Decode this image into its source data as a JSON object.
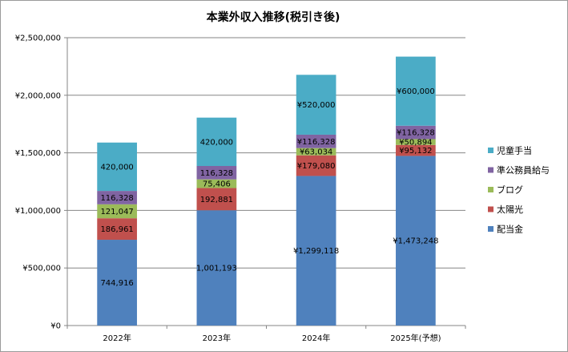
{
  "chart_data": {
    "type": "stacked-bar",
    "title": "本業外収入推移(税引き後)",
    "categories": [
      "2022年",
      "2023年",
      "2024年",
      "2025年(予想)"
    ],
    "ylim": [
      0,
      2500000
    ],
    "y_ticks": [
      0,
      500000,
      1000000,
      1500000,
      2000000,
      2500000
    ],
    "y_tick_labels": [
      "¥0",
      "¥500,000",
      "¥1,000,000",
      "¥1,500,000",
      "¥2,000,000",
      "¥2,500,000"
    ],
    "grid": true,
    "legend_position": "right",
    "series": [
      {
        "name": "配当金",
        "color": "#4f81bd",
        "values": [
          744916,
          1001193,
          1299118,
          1473248
        ],
        "labels": [
          "744,916",
          "1,001,193",
          "¥1,299,118",
          "¥1,473,248"
        ]
      },
      {
        "name": "太陽光",
        "color": "#c0504d",
        "values": [
          186961,
          192881,
          179080,
          95132
        ],
        "labels": [
          "186,961",
          "192,881",
          "¥179,080",
          "¥95,132"
        ]
      },
      {
        "name": "ブログ",
        "color": "#9bbb59",
        "values": [
          121047,
          75406,
          63034,
          50894
        ],
        "labels": [
          "121,047",
          "75,406",
          "¥63,034",
          "¥50,894"
        ]
      },
      {
        "name": "準公務員給与",
        "color": "#8064a2",
        "values": [
          116328,
          116328,
          116328,
          116328
        ],
        "labels": [
          "116,328",
          "116,328",
          "¥116,328",
          "¥116,328"
        ]
      },
      {
        "name": "児童手当",
        "color": "#4bacc6",
        "values": [
          420000,
          420000,
          520000,
          600000
        ],
        "labels": [
          "420,000",
          "420,000",
          "¥520,000",
          "¥600,000"
        ]
      }
    ]
  }
}
